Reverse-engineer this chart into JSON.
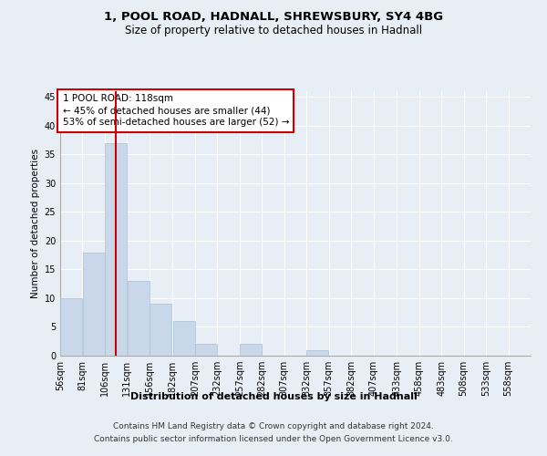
{
  "title1": "1, POOL ROAD, HADNALL, SHREWSBURY, SY4 4BG",
  "title2": "Size of property relative to detached houses in Hadnall",
  "xlabel": "Distribution of detached houses by size in Hadnall",
  "ylabel": "Number of detached properties",
  "bins": [
    56,
    81,
    106,
    131,
    156,
    182,
    207,
    232,
    257,
    282,
    307,
    332,
    357,
    382,
    407,
    433,
    458,
    483,
    508,
    533,
    558
  ],
  "heights": [
    10,
    18,
    37,
    13,
    9,
    6,
    2,
    0,
    2,
    0,
    0,
    1,
    0,
    0,
    0,
    0,
    0,
    0,
    0,
    0,
    0
  ],
  "bar_color": "#c8d8ea",
  "bar_edge_color": "#a8c0d4",
  "property_size": 118,
  "red_line_color": "#cc0000",
  "annotation_text": "1 POOL ROAD: 118sqm\n← 45% of detached houses are smaller (44)\n53% of semi-detached houses are larger (52) →",
  "annotation_box_color": "#ffffff",
  "annotation_box_edge": "#cc0000",
  "ylim": [
    0,
    46
  ],
  "yticks": [
    0,
    5,
    10,
    15,
    20,
    25,
    30,
    35,
    40,
    45
  ],
  "background_color": "#e8eef5",
  "plot_background": "#e8eef5",
  "footer1": "Contains HM Land Registry data © Crown copyright and database right 2024.",
  "footer2": "Contains public sector information licensed under the Open Government Licence v3.0.",
  "title1_fontsize": 9.5,
  "title2_fontsize": 8.5,
  "xlabel_fontsize": 8,
  "ylabel_fontsize": 7.5,
  "tick_fontsize": 7,
  "annotation_fontsize": 7.5,
  "footer_fontsize": 6.5
}
